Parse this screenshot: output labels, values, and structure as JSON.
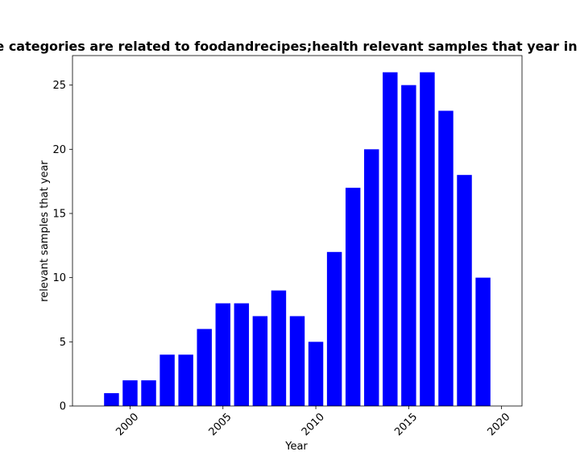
{
  "chart_data": {
    "type": "bar",
    "title": "Papers whose categories are related to foodandrecipes;health relevant samples that year in privacy papers",
    "xlabel": "Year",
    "ylabel": "relevant samples that year",
    "x": [
      1999,
      2000,
      2001,
      2002,
      2003,
      2004,
      2005,
      2006,
      2007,
      2008,
      2009,
      2010,
      2011,
      2012,
      2013,
      2014,
      2015,
      2016,
      2017,
      2018,
      2019
    ],
    "values": [
      1,
      2,
      2,
      4,
      4,
      6,
      8,
      8,
      7,
      9,
      7,
      5,
      12,
      17,
      20,
      26,
      25,
      26,
      23,
      18,
      10
    ],
    "xlim": [
      1996.9,
      2021.1
    ],
    "ylim": [
      0,
      27.3
    ],
    "xticks": [
      2000,
      2005,
      2010,
      2015,
      2020
    ],
    "yticks": [
      0,
      5,
      10,
      15,
      20,
      25
    ],
    "bar_color": "#0000ff",
    "grid": false,
    "legend": false
  }
}
